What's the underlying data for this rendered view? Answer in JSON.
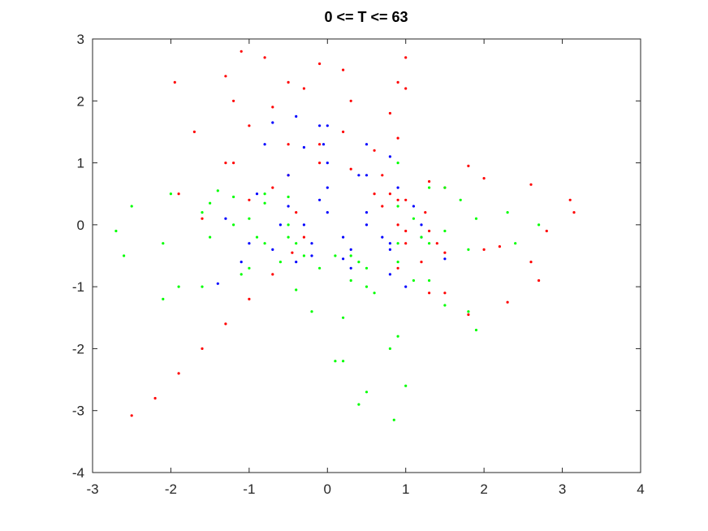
{
  "chart_data": {
    "type": "scatter",
    "title": "0 <= T <= 63",
    "xlabel": "",
    "ylabel": "",
    "xlim": [
      -3,
      4
    ],
    "ylim": [
      -4,
      3
    ],
    "xticks": [
      -3,
      -2,
      -1,
      0,
      1,
      2,
      3,
      4
    ],
    "yticks": [
      -4,
      -3,
      -2,
      -1,
      0,
      1,
      2,
      3
    ],
    "xtick_labels": [
      "-3",
      "-2",
      "-1",
      "0",
      "1",
      "2",
      "3",
      "4"
    ],
    "ytick_labels": [
      "-4",
      "-3",
      "-2",
      "-1",
      "0",
      "1",
      "2",
      "3"
    ],
    "grid": false,
    "legend": "none",
    "series": [
      {
        "color": "#ff0000",
        "marker": "dot",
        "points": [
          [
            -2.5,
            -3.08
          ],
          [
            -2.2,
            -2.8
          ],
          [
            -1.9,
            -2.4
          ],
          [
            -1.6,
            -2.0
          ],
          [
            -1.3,
            -1.6
          ],
          [
            -1.0,
            -1.2
          ],
          [
            -0.7,
            -0.8
          ],
          [
            -0.45,
            -0.45
          ],
          [
            -0.3,
            -0.2
          ],
          [
            -0.4,
            0.2
          ],
          [
            -0.7,
            0.6
          ],
          [
            -1.2,
            1.0
          ],
          [
            -1.7,
            1.5
          ],
          [
            -1.95,
            2.3
          ],
          [
            -1.3,
            1.0
          ],
          [
            -1.9,
            0.5
          ],
          [
            -1.6,
            0.1
          ],
          [
            -1.0,
            0.4
          ],
          [
            -0.5,
            0.8
          ],
          [
            -0.1,
            1.0
          ],
          [
            -1.2,
            2.0
          ],
          [
            -1.3,
            2.4
          ],
          [
            -1.1,
            2.8
          ],
          [
            -0.8,
            2.7
          ],
          [
            -0.5,
            2.3
          ],
          [
            -0.7,
            1.9
          ],
          [
            -1.0,
            1.6
          ],
          [
            -0.5,
            1.3
          ],
          [
            -0.3,
            2.2
          ],
          [
            -0.1,
            2.6
          ],
          [
            0.2,
            2.5
          ],
          [
            0.3,
            2.0
          ],
          [
            0.2,
            1.5
          ],
          [
            -0.1,
            1.3
          ],
          [
            0.6,
            1.2
          ],
          [
            0.8,
            1.8
          ],
          [
            0.9,
            2.3
          ],
          [
            1.0,
            2.7
          ],
          [
            1.0,
            2.2
          ],
          [
            0.9,
            1.4
          ],
          [
            0.7,
            0.8
          ],
          [
            0.3,
            0.9
          ],
          [
            0.6,
            0.5
          ],
          [
            1.0,
            0.4
          ],
          [
            1.5,
            0.6
          ],
          [
            1.8,
            0.95
          ],
          [
            0.8,
            0.5
          ],
          [
            1.3,
            0.7
          ],
          [
            2.0,
            0.75
          ],
          [
            2.6,
            0.65
          ],
          [
            3.1,
            0.4
          ],
          [
            3.15,
            0.2
          ],
          [
            2.8,
            -0.1
          ],
          [
            2.2,
            -0.35
          ],
          [
            1.5,
            -0.45
          ],
          [
            1.0,
            -0.3
          ],
          [
            2.3,
            -1.25
          ],
          [
            2.7,
            -0.9
          ],
          [
            2.6,
            -0.6
          ],
          [
            2.0,
            -0.4
          ],
          [
            1.4,
            -0.3
          ],
          [
            1.0,
            -0.1
          ],
          [
            1.2,
            -0.6
          ],
          [
            1.5,
            -1.1
          ],
          [
            1.8,
            -1.45
          ],
          [
            1.3,
            -1.1
          ],
          [
            0.9,
            -0.7
          ],
          [
            0.7,
            0.3
          ],
          [
            0.9,
            0.0
          ],
          [
            1.3,
            -0.1
          ],
          [
            1.25,
            0.2
          ],
          [
            0.9,
            0.4
          ]
        ]
      },
      {
        "color": "#0000ff",
        "marker": "dot",
        "points": [
          [
            -0.8,
            1.3
          ],
          [
            -0.7,
            1.65
          ],
          [
            -0.4,
            1.75
          ],
          [
            -0.1,
            1.6
          ],
          [
            -0.05,
            1.3
          ],
          [
            -0.3,
            1.25
          ],
          [
            -1.4,
            -0.95
          ],
          [
            -1.1,
            -0.6
          ],
          [
            -0.7,
            -0.4
          ],
          [
            -0.2,
            -0.5
          ],
          [
            0.3,
            -0.7
          ],
          [
            0.8,
            -0.8
          ],
          [
            1.0,
            -1.0
          ],
          [
            -1.3,
            0.1
          ],
          [
            -1.0,
            -0.3
          ],
          [
            -0.4,
            -0.6
          ],
          [
            0.2,
            -0.55
          ],
          [
            0.8,
            -0.4
          ],
          [
            1.2,
            -0.2
          ],
          [
            1.5,
            -0.55
          ],
          [
            -0.9,
            0.5
          ],
          [
            -0.5,
            0.8
          ],
          [
            0.0,
            1.0
          ],
          [
            0.5,
            0.8
          ],
          [
            0.9,
            0.6
          ],
          [
            1.1,
            0.3
          ],
          [
            1.2,
            0.0
          ],
          [
            -0.5,
            0.3
          ],
          [
            0.0,
            0.2
          ],
          [
            0.5,
            0.0
          ],
          [
            0.8,
            -0.3
          ],
          [
            0.2,
            -0.2
          ],
          [
            -0.3,
            0.0
          ],
          [
            0.0,
            1.6
          ],
          [
            0.5,
            1.3
          ],
          [
            0.8,
            1.1
          ],
          [
            0.4,
            0.8
          ],
          [
            0.0,
            0.6
          ],
          [
            -0.6,
            0.0
          ],
          [
            -0.2,
            -0.3
          ],
          [
            0.3,
            -0.4
          ],
          [
            0.7,
            -0.2
          ],
          [
            0.5,
            0.2
          ],
          [
            -0.1,
            0.4
          ]
        ]
      },
      {
        "color": "#00ff00",
        "marker": "dot",
        "points": [
          [
            -2.7,
            -0.1
          ],
          [
            -2.5,
            0.3
          ],
          [
            -2.0,
            0.5
          ],
          [
            -1.4,
            0.55
          ],
          [
            -0.8,
            0.5
          ],
          [
            -0.5,
            0.45
          ],
          [
            -2.6,
            -0.5
          ],
          [
            -2.1,
            -0.3
          ],
          [
            -1.5,
            -0.2
          ],
          [
            -0.9,
            -0.2
          ],
          [
            -0.4,
            -0.3
          ],
          [
            -2.1,
            -1.2
          ],
          [
            -1.6,
            -1.0
          ],
          [
            -1.1,
            -0.8
          ],
          [
            -0.6,
            -0.6
          ],
          [
            -0.4,
            -1.05
          ],
          [
            -1.9,
            -1.0
          ],
          [
            -1.0,
            -0.7
          ],
          [
            -0.3,
            -0.5
          ],
          [
            0.3,
            -0.5
          ],
          [
            0.9,
            -0.3
          ],
          [
            1.3,
            -0.3
          ],
          [
            -1.5,
            0.35
          ],
          [
            -1.0,
            0.1
          ],
          [
            -0.5,
            -0.2
          ],
          [
            0.1,
            -0.5
          ],
          [
            0.5,
            -0.7
          ],
          [
            0.3,
            -0.9
          ],
          [
            0.2,
            -1.5
          ],
          [
            0.2,
            -2.2
          ],
          [
            0.4,
            -2.9
          ],
          [
            0.85,
            -3.15
          ],
          [
            1.0,
            -2.6
          ],
          [
            0.9,
            -1.8
          ],
          [
            0.6,
            -1.1
          ],
          [
            0.4,
            -0.6
          ],
          [
            -0.1,
            -0.7
          ],
          [
            -0.2,
            -1.4
          ],
          [
            0.1,
            -2.2
          ],
          [
            0.5,
            -2.7
          ],
          [
            0.8,
            -2.0
          ],
          [
            0.5,
            -1.0
          ],
          [
            0.9,
            -0.6
          ],
          [
            1.3,
            -0.9
          ],
          [
            1.8,
            -1.4
          ],
          [
            1.9,
            -1.7
          ],
          [
            1.5,
            -1.3
          ],
          [
            1.1,
            -0.9
          ],
          [
            0.9,
            1.0
          ],
          [
            1.5,
            0.6
          ],
          [
            2.3,
            0.2
          ],
          [
            2.7,
            0.0
          ],
          [
            2.4,
            -0.3
          ],
          [
            1.8,
            -0.4
          ],
          [
            1.2,
            -0.2
          ],
          [
            0.9,
            0.3
          ],
          [
            1.3,
            0.6
          ],
          [
            1.7,
            0.4
          ],
          [
            1.9,
            0.1
          ],
          [
            1.5,
            -0.1
          ],
          [
            1.1,
            0.1
          ],
          [
            -1.6,
            0.2
          ],
          [
            -1.2,
            0.0
          ],
          [
            -0.8,
            -0.3
          ],
          [
            -0.5,
            0.0
          ],
          [
            -0.8,
            0.35
          ],
          [
            -1.2,
            0.45
          ]
        ]
      }
    ]
  }
}
